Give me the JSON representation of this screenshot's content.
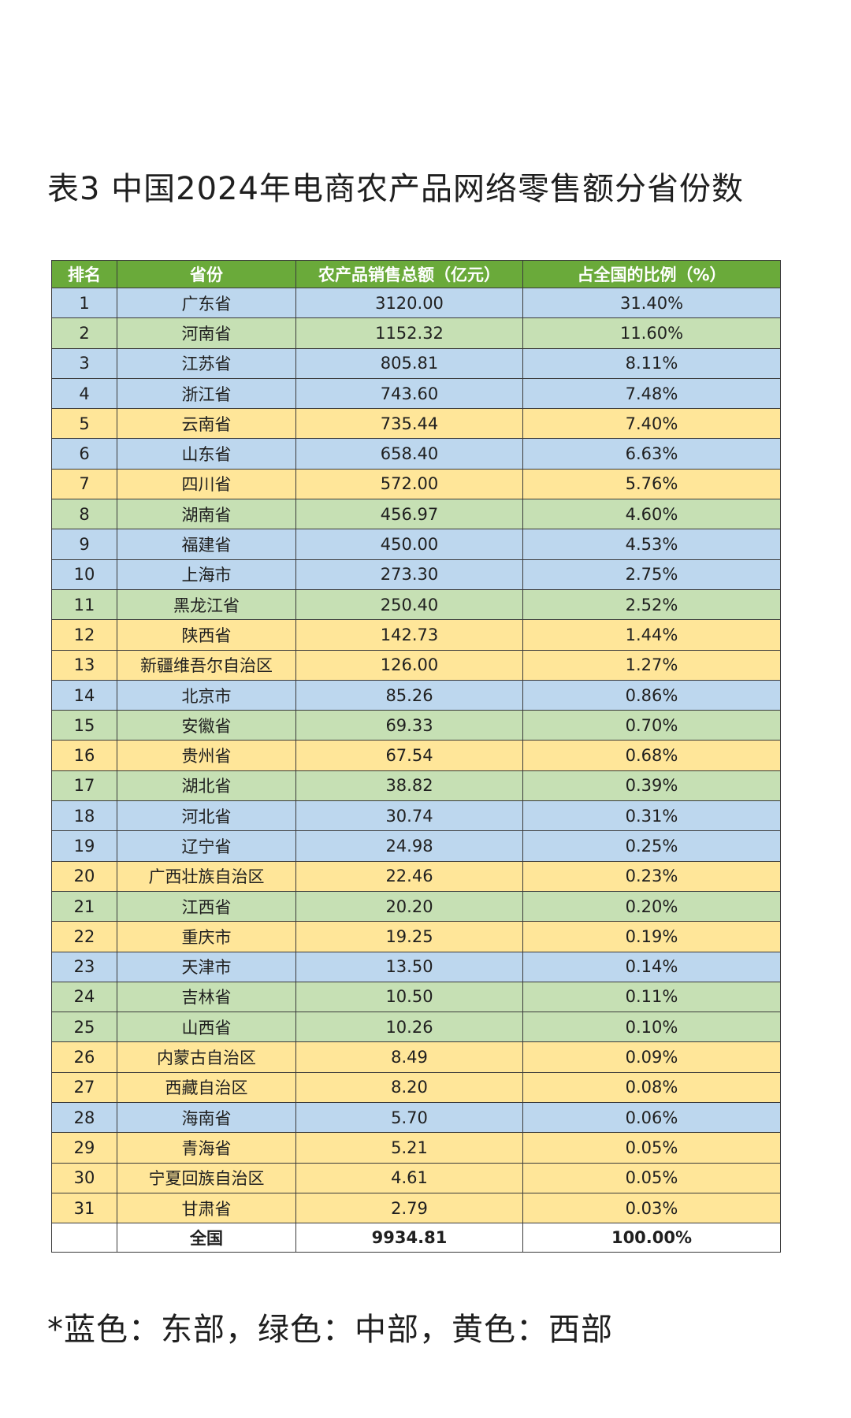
{
  "title": "表3 中国2024年电商农产品网络零售额分省份数",
  "colors": {
    "header_bg": "#6aaa3a",
    "east": "#bdd7ee",
    "central": "#c6e0b4",
    "west": "#ffe699"
  },
  "table": {
    "headers": [
      "排名",
      "省份",
      "农产品销售总额（亿元）",
      "占全国的比例（%）"
    ],
    "rows": [
      {
        "rank": "1",
        "province": "广东省",
        "sales": "3120.00",
        "share": "31.40%",
        "region": "east"
      },
      {
        "rank": "2",
        "province": "河南省",
        "sales": "1152.32",
        "share": "11.60%",
        "region": "central"
      },
      {
        "rank": "3",
        "province": "江苏省",
        "sales": "805.81",
        "share": "8.11%",
        "region": "east"
      },
      {
        "rank": "4",
        "province": "浙江省",
        "sales": "743.60",
        "share": "7.48%",
        "region": "east"
      },
      {
        "rank": "5",
        "province": "云南省",
        "sales": "735.44",
        "share": "7.40%",
        "region": "west"
      },
      {
        "rank": "6",
        "province": "山东省",
        "sales": "658.40",
        "share": "6.63%",
        "region": "east"
      },
      {
        "rank": "7",
        "province": "四川省",
        "sales": "572.00",
        "share": "5.76%",
        "region": "west"
      },
      {
        "rank": "8",
        "province": "湖南省",
        "sales": "456.97",
        "share": "4.60%",
        "region": "central"
      },
      {
        "rank": "9",
        "province": "福建省",
        "sales": "450.00",
        "share": "4.53%",
        "region": "east"
      },
      {
        "rank": "10",
        "province": "上海市",
        "sales": "273.30",
        "share": "2.75%",
        "region": "east"
      },
      {
        "rank": "11",
        "province": "黑龙江省",
        "sales": "250.40",
        "share": "2.52%",
        "region": "central"
      },
      {
        "rank": "12",
        "province": "陕西省",
        "sales": "142.73",
        "share": "1.44%",
        "region": "west"
      },
      {
        "rank": "13",
        "province": "新疆维吾尔自治区",
        "sales": "126.00",
        "share": "1.27%",
        "region": "west"
      },
      {
        "rank": "14",
        "province": "北京市",
        "sales": "85.26",
        "share": "0.86%",
        "region": "east"
      },
      {
        "rank": "15",
        "province": "安徽省",
        "sales": "69.33",
        "share": "0.70%",
        "region": "central"
      },
      {
        "rank": "16",
        "province": "贵州省",
        "sales": "67.54",
        "share": "0.68%",
        "region": "west"
      },
      {
        "rank": "17",
        "province": "湖北省",
        "sales": "38.82",
        "share": "0.39%",
        "region": "central"
      },
      {
        "rank": "18",
        "province": "河北省",
        "sales": "30.74",
        "share": "0.31%",
        "region": "east"
      },
      {
        "rank": "19",
        "province": "辽宁省",
        "sales": "24.98",
        "share": "0.25%",
        "region": "east"
      },
      {
        "rank": "20",
        "province": "广西壮族自治区",
        "sales": "22.46",
        "share": "0.23%",
        "region": "west"
      },
      {
        "rank": "21",
        "province": "江西省",
        "sales": "20.20",
        "share": "0.20%",
        "region": "central"
      },
      {
        "rank": "22",
        "province": "重庆市",
        "sales": "19.25",
        "share": "0.19%",
        "region": "west"
      },
      {
        "rank": "23",
        "province": "天津市",
        "sales": "13.50",
        "share": "0.14%",
        "region": "east"
      },
      {
        "rank": "24",
        "province": "吉林省",
        "sales": "10.50",
        "share": "0.11%",
        "region": "central"
      },
      {
        "rank": "25",
        "province": "山西省",
        "sales": "10.26",
        "share": "0.10%",
        "region": "central"
      },
      {
        "rank": "26",
        "province": "内蒙古自治区",
        "sales": "8.49",
        "share": "0.09%",
        "region": "west"
      },
      {
        "rank": "27",
        "province": "西藏自治区",
        "sales": "8.20",
        "share": "0.08%",
        "region": "west"
      },
      {
        "rank": "28",
        "province": "海南省",
        "sales": "5.70",
        "share": "0.06%",
        "region": "east"
      },
      {
        "rank": "29",
        "province": "青海省",
        "sales": "5.21",
        "share": "0.05%",
        "region": "west"
      },
      {
        "rank": "30",
        "province": "宁夏回族自治区",
        "sales": "4.61",
        "share": "0.05%",
        "region": "west"
      },
      {
        "rank": "31",
        "province": "甘肃省",
        "sales": "2.79",
        "share": "0.03%",
        "region": "west"
      }
    ],
    "total": {
      "rank": "",
      "province": "全国",
      "sales": "9934.81",
      "share": "100.00%"
    }
  },
  "footnote": "*蓝色：东部，绿色：中部，黄色：西部"
}
